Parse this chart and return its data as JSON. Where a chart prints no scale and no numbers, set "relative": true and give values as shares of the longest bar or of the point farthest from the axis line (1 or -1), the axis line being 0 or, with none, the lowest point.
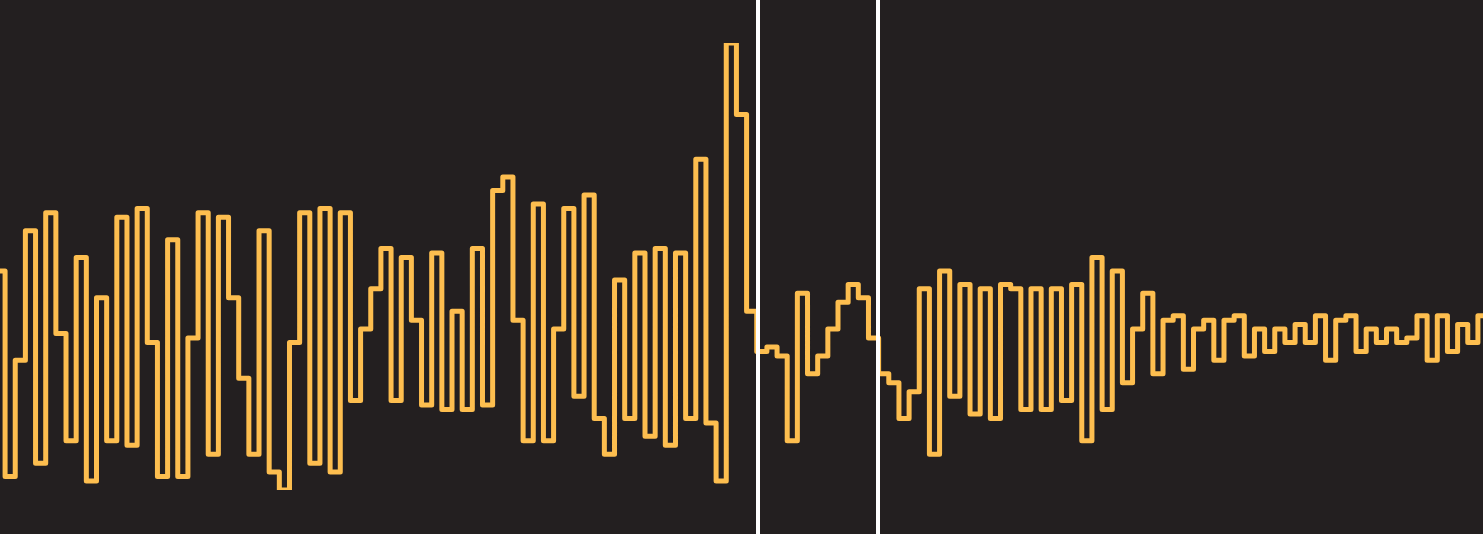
{
  "chart_data": {
    "type": "step",
    "relative": true,
    "categories": [
      null,
      null,
      null,
      null,
      null,
      null,
      null,
      null,
      null,
      null,
      null,
      null,
      null,
      null,
      null,
      null,
      null,
      null,
      null,
      null,
      null,
      null,
      null,
      null,
      null,
      null,
      null,
      null,
      null,
      null,
      null,
      null,
      null,
      null,
      null,
      null,
      null,
      null,
      null,
      null,
      null,
      null,
      null,
      null,
      null,
      null,
      null,
      null,
      null,
      null,
      null,
      null,
      null,
      null,
      null,
      null,
      null,
      null,
      null,
      null,
      null,
      null,
      null,
      null,
      null,
      null,
      null,
      null,
      null,
      null,
      null,
      null,
      null,
      null,
      null,
      null,
      null,
      null,
      null,
      null,
      null,
      null,
      null,
      null,
      null,
      null,
      null,
      null,
      null,
      null,
      null,
      null,
      null,
      null,
      null,
      null,
      null,
      null,
      null,
      null,
      null,
      null,
      null,
      null,
      null,
      null,
      null,
      null,
      null,
      null,
      null,
      null,
      null,
      null,
      null,
      null,
      null,
      null,
      null,
      null,
      null,
      null,
      null,
      null,
      null,
      null,
      null,
      null,
      null,
      null,
      null,
      null,
      null,
      null,
      null,
      null,
      null,
      null,
      null,
      null,
      null,
      null,
      null,
      null,
      null,
      null,
      null
    ],
    "series": [
      {
        "color": "#fdbe4f",
        "values": [
          0.49,
          0.03,
          0.29,
          0.58,
          0.06,
          0.62,
          0.35,
          0.11,
          0.52,
          0.02,
          0.43,
          0.11,
          0.61,
          0.1,
          0.63,
          0.33,
          0.03,
          0.56,
          0.03,
          0.34,
          0.62,
          0.08,
          0.61,
          0.43,
          0.25,
          0.08,
          0.58,
          0.04,
          0,
          0.33,
          0.62,
          0.06,
          0.63,
          0.04,
          0.62,
          0.2,
          0.36,
          0.45,
          0.54,
          0.2,
          0.52,
          0.38,
          0.19,
          0.53,
          0.18,
          0.4,
          0.18,
          0.54,
          0.19,
          0.67,
          0.7,
          0.38,
          0.11,
          0.64,
          0.11,
          0.36,
          0.63,
          0.21,
          0.66,
          0.16,
          0.08,
          0.47,
          0.16,
          0.53,
          0.12,
          0.54,
          0.1,
          0.53,
          0.16,
          0.74,
          0.15,
          0.02,
          1,
          0.84,
          0.4,
          0.31,
          0.32,
          0.3,
          0.11,
          0.44,
          0.26,
          0.3,
          0.36,
          0.42,
          0.46,
          0.43,
          0.34,
          0.26,
          0.24,
          0.16,
          0.22,
          0.45,
          0.08,
          0.49,
          0.21,
          0.46,
          0.17,
          0.45,
          0.16,
          0.46,
          0.45,
          0.18,
          0.45,
          0.18,
          0.45,
          0.2,
          0.46,
          0.11,
          0.52,
          0.18,
          0.49,
          0.24,
          0.36,
          0.44,
          0.26,
          0.38,
          0.39,
          0.27,
          0.36,
          0.38,
          0.29,
          0.38,
          0.39,
          0.3,
          0.36,
          0.31,
          0.36,
          0.33,
          0.37,
          0.33,
          0.39,
          0.29,
          0.38,
          0.39,
          0.31,
          0.36,
          0.33,
          0.36,
          0.33,
          0.34,
          0.39,
          0.29,
          0.39,
          0.31,
          0.37,
          0.33,
          0.39
        ]
      }
    ]
  }
}
